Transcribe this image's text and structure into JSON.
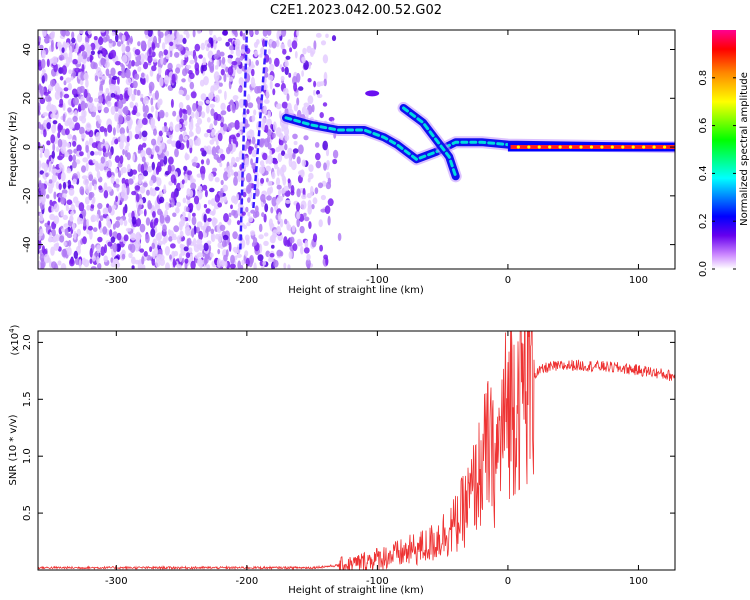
{
  "figure": {
    "title": "C2E1.2023.042.00.52.G02"
  },
  "chart_data": [
    {
      "type": "heatmap",
      "title": "C2E1.2023.042.00.52.G02",
      "xlabel": "Height of straight line (km)",
      "ylabel": "Frequency (Hz)",
      "xlim": [
        -360,
        128
      ],
      "ylim": [
        -50,
        48
      ],
      "x_ticks": [
        -300,
        -200,
        -100,
        0,
        100
      ],
      "x_tick_labels": [
        "-300",
        "-200",
        "-100",
        "0",
        "100"
      ],
      "y_ticks": [
        -40,
        -20,
        0,
        20,
        40
      ],
      "y_tick_labels": [
        "-40",
        "-20",
        "0",
        "20",
        "40"
      ],
      "colorbar": {
        "label": "Normalized spectral amplitude",
        "range": [
          0,
          1
        ],
        "ticks": [
          0.0,
          0.2,
          0.4,
          0.6,
          0.8
        ],
        "tick_labels": [
          "0.0",
          "0.2",
          "0.4",
          "0.6",
          "0.8"
        ],
        "colors": [
          "#ffffff",
          "#cc88ff",
          "#6600ee",
          "#0000ff",
          "#00ffff",
          "#00ff00",
          "#ffff00",
          "#ff8800",
          "#ff0000",
          "#ff00aa"
        ]
      },
      "features": {
        "noise_region_x": [
          -360,
          -150
        ],
        "main_trace": [
          {
            "x": -170,
            "y": 12
          },
          {
            "x": -150,
            "y": 9
          },
          {
            "x": -130,
            "y": 7
          },
          {
            "x": -110,
            "y": 7
          },
          {
            "x": -95,
            "y": 4
          },
          {
            "x": -85,
            "y": 1
          },
          {
            "x": -70,
            "y": -5
          },
          {
            "x": -55,
            "y": -2
          },
          {
            "x": -40,
            "y": 2
          },
          {
            "x": -20,
            "y": 2
          },
          {
            "x": 0,
            "y": 1
          },
          {
            "x": 128,
            "y": 0
          }
        ],
        "branch_trace": [
          {
            "x": -80,
            "y": 16
          },
          {
            "x": -65,
            "y": 10
          },
          {
            "x": -55,
            "y": 3
          },
          {
            "x": -45,
            "y": -4
          },
          {
            "x": -40,
            "y": -12
          }
        ],
        "steep_line_1": [
          {
            "x": -205,
            "y": -42
          },
          {
            "x": -200,
            "y": 48
          }
        ],
        "steep_line_2": [
          {
            "x": -195,
            "y": -25
          },
          {
            "x": -185,
            "y": 45
          }
        ]
      },
      "grid": false
    },
    {
      "type": "line",
      "xlabel": "Height of straight line (km)",
      "ylabel": "SNR (10 * v/v)",
      "y_multiplier": "(x10",
      "y_multiplier_exp": "4",
      "y_multiplier_close": ")",
      "xlim": [
        -360,
        128
      ],
      "ylim": [
        0,
        2.1
      ],
      "x_ticks": [
        -300,
        -200,
        -100,
        0,
        100
      ],
      "x_tick_labels": [
        "-300",
        "-200",
        "-100",
        "0",
        "100"
      ],
      "y_ticks": [
        0.5,
        1.0,
        1.5,
        2.0
      ],
      "y_tick_labels": [
        "0.5",
        "1.0",
        "1.5",
        "2.0"
      ],
      "color": "#ee3333",
      "series": [
        {
          "x": [
            -360,
            -300,
            -200,
            -150,
            -120,
            -100,
            -80,
            -60,
            -40,
            -30,
            -20,
            -15,
            -10,
            -5,
            0,
            10,
            20,
            30,
            50,
            70,
            90,
            110,
            128
          ],
          "values": [
            0.02,
            0.02,
            0.02,
            0.02,
            0.05,
            0.1,
            0.15,
            0.22,
            0.4,
            0.6,
            0.9,
            1.1,
            0.9,
            1.2,
            1.45,
            1.6,
            1.72,
            1.78,
            1.8,
            1.79,
            1.77,
            1.74,
            1.7
          ]
        }
      ],
      "grid": false
    }
  ]
}
